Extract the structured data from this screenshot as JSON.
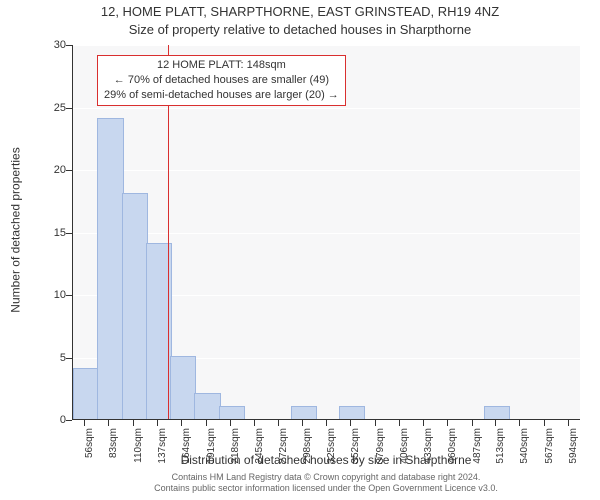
{
  "titles": {
    "line1": "12, HOME PLATT, SHARPTHORNE, EAST GRINSTEAD, RH19 4NZ",
    "line2": "Size of property relative to detached houses in Sharpthorne"
  },
  "ylabel": "Number of detached properties",
  "xlabel": "Distribution of detached houses by size in Sharpthorne",
  "footer": {
    "line1": "Contains HM Land Registry data © Crown copyright and database right 2024.",
    "line2": "Contains public sector information licensed under the Open Government Licence v3.0."
  },
  "chart": {
    "type": "histogram",
    "background": "#f7f7f8",
    "grid_color": "#ffffff",
    "axis_color": "#333333",
    "ylim": [
      0,
      30
    ],
    "ytick_step": 5,
    "yticks": [
      0,
      5,
      10,
      15,
      20,
      25,
      30
    ],
    "x_categories": [
      "56sqm",
      "83sqm",
      "110sqm",
      "137sqm",
      "164sqm",
      "191sqm",
      "218sqm",
      "245sqm",
      "272sqm",
      "298sqm",
      "325sqm",
      "352sqm",
      "379sqm",
      "406sqm",
      "433sqm",
      "460sqm",
      "487sqm",
      "513sqm",
      "540sqm",
      "567sqm",
      "594sqm"
    ],
    "x_positions": [
      56,
      83,
      110,
      137,
      164,
      191,
      218,
      245,
      272,
      298,
      325,
      352,
      379,
      406,
      433,
      460,
      487,
      513,
      540,
      567,
      594
    ],
    "bars": [
      {
        "x": 56,
        "value": 4
      },
      {
        "x": 83,
        "value": 24
      },
      {
        "x": 110,
        "value": 18
      },
      {
        "x": 137,
        "value": 14
      },
      {
        "x": 164,
        "value": 5
      },
      {
        "x": 191,
        "value": 2
      },
      {
        "x": 218,
        "value": 1
      },
      {
        "x": 298,
        "value": 1
      },
      {
        "x": 352,
        "value": 1
      },
      {
        "x": 513,
        "value": 1
      }
    ],
    "bar_width_units": 27,
    "bar_fill": "#c8d7ef",
    "bar_stroke": "#9fb7e0",
    "reference_line": {
      "x": 148,
      "color": "#d92f2f"
    },
    "annotation": {
      "line1": "12 HOME PLATT: 148sqm",
      "line2": "← 70% of detached houses are smaller (49)",
      "line3": "29% of semi-detached houses are larger (20) →",
      "border_color": "#d92f2f",
      "bg_color": "#ffffff"
    },
    "x_domain": [
      42.5,
      607.5
    ]
  }
}
